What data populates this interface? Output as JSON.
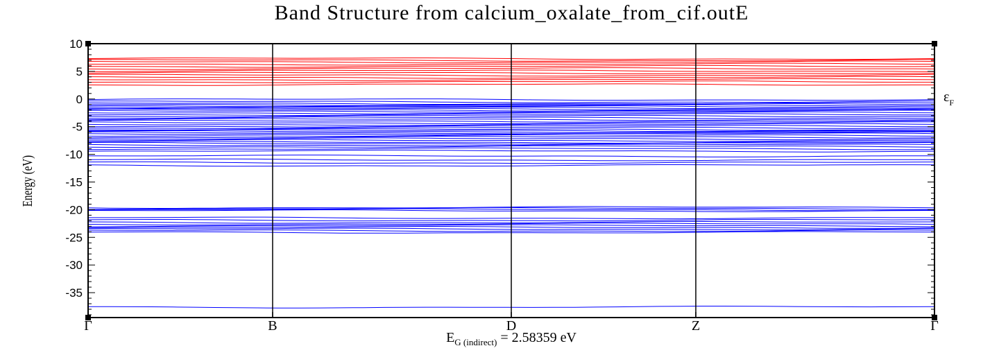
{
  "chart_data": {
    "type": "line",
    "title": "Band Structure from calcium_oxalate_from_cif.outE",
    "ylabel": "Energy (eV)",
    "ylim": [
      -39.5,
      10
    ],
    "y_major_ticks": [
      10,
      5,
      0,
      -5,
      -10,
      -15,
      -20,
      -25,
      -30,
      -35
    ],
    "y_tick_labels": [
      "10",
      "5",
      "0",
      "-5",
      "-10",
      "-15",
      "-20",
      "-25",
      "-30",
      "-35"
    ],
    "fermi_label": {
      "symbol": "ε",
      "subscript": "F"
    },
    "band_gap_label": {
      "prefix": "E",
      "subscript": "G (indirect)",
      "text": " = 2.58359 eV"
    },
    "k_points": [
      {
        "label": "Γ",
        "x": 0
      },
      {
        "label": "B",
        "x": 0.218
      },
      {
        "label": "D",
        "x": 0.5
      },
      {
        "label": "Z",
        "x": 0.718
      },
      {
        "label": "Γ",
        "x": 1
      }
    ],
    "conduction_color": "#ff0000",
    "valence_color": "#0000ff",
    "axis_color": "#000000",
    "conduction_bands": [
      7.3,
      7.0,
      6.7,
      6.3,
      5.9,
      5.5,
      5.1,
      4.7,
      4.3,
      3.9,
      3.5,
      3.1,
      2.6
    ],
    "valence_bands": [
      -0.1,
      -0.5,
      -0.8,
      -1.0,
      -1.2,
      -1.4,
      -1.6,
      -1.8,
      -2.0,
      -2.2,
      -2.5,
      -2.8,
      -3.1,
      -3.4,
      -3.7,
      -4.0,
      -4.3,
      -4.6,
      -4.9,
      -5.2,
      -5.5,
      -5.7,
      -5.9,
      -6.1,
      -6.3,
      -6.6,
      -6.9,
      -7.2,
      -7.5,
      -7.8,
      -8.0,
      -8.3,
      -8.6,
      -9.0,
      -9.4,
      -10.3,
      -11.0,
      -11.5,
      -12.0,
      -19.6,
      -19.8,
      -20.0,
      -20.2,
      -21.5,
      -21.9,
      -22.3,
      -22.6,
      -22.9,
      -23.2,
      -23.5,
      -23.8,
      -24.1,
      -37.6
    ]
  }
}
